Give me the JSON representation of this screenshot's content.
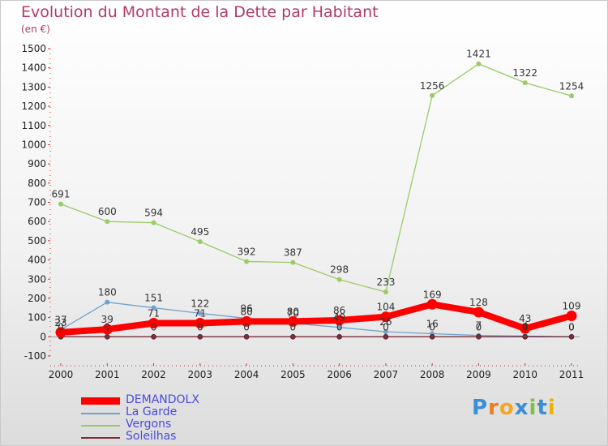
{
  "title": "Evolution du Montant de la Dette par Habitant",
  "unit": "(en €)",
  "logo": {
    "letters": [
      "P",
      "r",
      "o",
      "x",
      "i",
      "t",
      "i"
    ],
    "colors": [
      "#3b8fd6",
      "#f07d1a",
      "#f5a623",
      "#3b8fd6",
      "#7cc242",
      "#3b8fd6",
      "#e8b400"
    ]
  },
  "chart_data": {
    "type": "line",
    "x": [
      "2000",
      "2001",
      "2002",
      "2003",
      "2004",
      "2005",
      "2006",
      "2007",
      "2008",
      "2009",
      "2010",
      "2011"
    ],
    "ylim": [
      -100,
      1500
    ],
    "yticks": [
      -100,
      0,
      100,
      200,
      300,
      400,
      500,
      600,
      700,
      800,
      900,
      1000,
      1100,
      1200,
      1300,
      1400,
      1500
    ],
    "grid": false,
    "legend_position": "bottom-left",
    "series": [
      {
        "name": "DEMANDOLX",
        "values": [
          23,
          39,
          71,
          71,
          80,
          80,
          86,
          104,
          169,
          128,
          43,
          109
        ],
        "labels": [
          "23",
          "39",
          "71",
          "71",
          "80",
          "80",
          "86",
          "104",
          "169",
          "128",
          "43",
          "109"
        ],
        "color": "#ff0000",
        "width": 8
      },
      {
        "name": "La Garde",
        "values": [
          37,
          180,
          151,
          122,
          96,
          70,
          49,
          26,
          16,
          7,
          4,
          0
        ],
        "labels": [
          "37",
          "180",
          "151",
          "122",
          "96",
          "70",
          "49",
          "26",
          "16",
          "7",
          "4",
          "0"
        ],
        "color": "#6fa3cf",
        "width": 1.3
      },
      {
        "name": "Vergons",
        "values": [
          691,
          600,
          594,
          495,
          392,
          387,
          298,
          233,
          1256,
          1421,
          1322,
          1254
        ],
        "labels": [
          "691",
          "600",
          "594",
          "495",
          "392",
          "387",
          "298",
          "233",
          "1256",
          "1421",
          "1322",
          "1254"
        ],
        "color": "#99cc66",
        "width": 1.3
      },
      {
        "name": "Soleilhas",
        "values": [
          0,
          0,
          0,
          0,
          0,
          0,
          0,
          0,
          0,
          0,
          0,
          0
        ],
        "labels": [
          "0",
          "0",
          "0",
          "0",
          "0",
          "0",
          "0",
          "0",
          "0",
          "0",
          "0",
          "0"
        ],
        "color": "#7a2f3a",
        "width": 1.3
      }
    ]
  }
}
